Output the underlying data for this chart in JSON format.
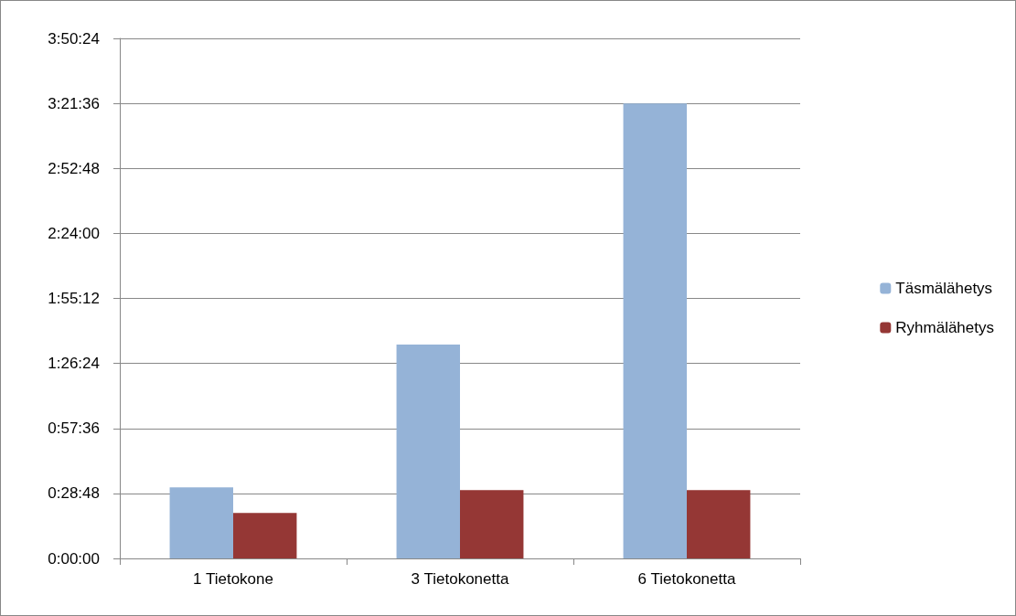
{
  "chart_data": {
    "type": "bar",
    "categories": [
      "1 Tietokone",
      "3 Tietokonetta",
      "6 Tietokonetta"
    ],
    "series": [
      {
        "name": "Täsmälähetys",
        "color": "#95b3d7",
        "values": [
          0.525,
          1.58,
          3.36
        ]
      },
      {
        "name": "Ryhmälähetys",
        "color": "#953735",
        "values": [
          0.336,
          0.504,
          0.504
        ]
      }
    ],
    "ylim": [
      0,
      3.84
    ],
    "yticks": [
      {
        "value": 0,
        "label": "0:00:00"
      },
      {
        "value": 0.48,
        "label": "0:28:48"
      },
      {
        "value": 0.96,
        "label": "0:57:36"
      },
      {
        "value": 1.44,
        "label": "1:26:24"
      },
      {
        "value": 1.92,
        "label": "1:55:12"
      },
      {
        "value": 2.4,
        "label": "2:24:00"
      },
      {
        "value": 2.88,
        "label": "2:52:48"
      },
      {
        "value": 3.36,
        "label": "3:21:36"
      },
      {
        "value": 3.84,
        "label": "3:50:24"
      }
    ],
    "grid": "y",
    "legend": "right"
  }
}
